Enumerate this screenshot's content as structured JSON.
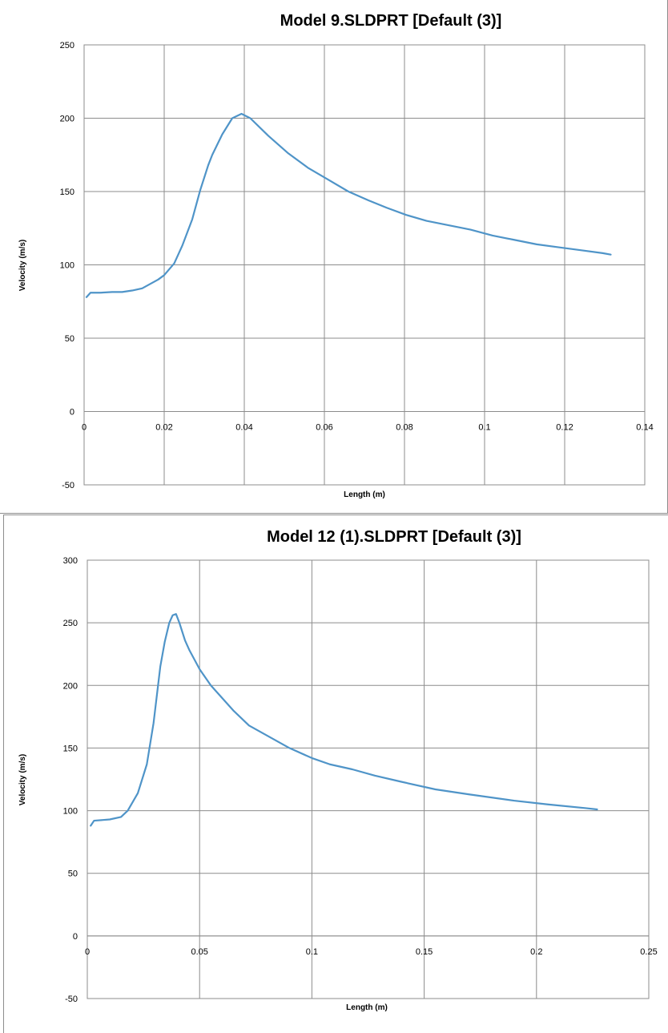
{
  "chart_data": [
    {
      "type": "line",
      "title": "Model 9.SLDPRT [Default (3)]",
      "xlabel": "Length (m)",
      "ylabel": "Velocity (m/s)",
      "xlim": [
        0,
        0.14
      ],
      "ylim": [
        -50,
        250
      ],
      "xticks": [
        "0",
        "0.02",
        "0.04",
        "0.06",
        "0.08",
        "0.1",
        "0.12",
        "0.14"
      ],
      "yticks": [
        "-50",
        "0",
        "50",
        "100",
        "150",
        "200",
        "250"
      ],
      "grid": true,
      "series_color": "#4f94c8",
      "series": [
        {
          "x": [
            0.0006,
            0.0016,
            0.004,
            0.007,
            0.0095,
            0.012,
            0.0145,
            0.0165,
            0.0185,
            0.02,
            0.0225,
            0.0245,
            0.027,
            0.029,
            0.031,
            0.032,
            0.0345,
            0.037,
            0.0393,
            0.0415,
            0.046,
            0.051,
            0.056,
            0.061,
            0.066,
            0.071,
            0.0755,
            0.0805,
            0.0855,
            0.091,
            0.0965,
            0.102,
            0.1075,
            0.113,
            0.1185,
            0.124,
            0.1295,
            0.1315
          ],
          "y": [
            78,
            81,
            81,
            81.5,
            81.5,
            82.5,
            84,
            87,
            90,
            93,
            101,
            113,
            131,
            151,
            168,
            175,
            189,
            200,
            203,
            200,
            188,
            176,
            166,
            158,
            150,
            144,
            139,
            134,
            130,
            127,
            124,
            120,
            117,
            114,
            112,
            110,
            108,
            107
          ]
        }
      ]
    },
    {
      "type": "line",
      "title": "Model 12 (1).SLDPRT [Default (3)]",
      "xlabel": "Length (m)",
      "ylabel": "Velocity (m/s)",
      "xlim": [
        0,
        0.25
      ],
      "ylim": [
        -50,
        300
      ],
      "xticks": [
        "0",
        "0.05",
        "0.1",
        "0.15",
        "0.2",
        "0.25"
      ],
      "yticks": [
        "-50",
        "0",
        "50",
        "100",
        "150",
        "200",
        "250",
        "300"
      ],
      "grid": true,
      "series_color": "#4f94c8",
      "series": [
        {
          "x": [
            0.0015,
            0.003,
            0.01,
            0.015,
            0.018,
            0.0225,
            0.0265,
            0.0295,
            0.0325,
            0.0345,
            0.0365,
            0.038,
            0.0395,
            0.041,
            0.0435,
            0.0455,
            0.05,
            0.055,
            0.065,
            0.072,
            0.08,
            0.09,
            0.1,
            0.108,
            0.118,
            0.128,
            0.14,
            0.155,
            0.17,
            0.19,
            0.205,
            0.222,
            0.227
          ],
          "y": [
            88,
            92,
            93,
            95,
            100,
            114,
            137,
            170,
            215,
            235,
            250,
            256,
            257,
            250,
            236,
            228,
            213,
            200,
            180,
            168,
            160,
            150,
            142,
            137,
            133,
            128,
            123,
            117,
            113,
            108,
            105,
            102,
            101
          ]
        }
      ]
    }
  ]
}
